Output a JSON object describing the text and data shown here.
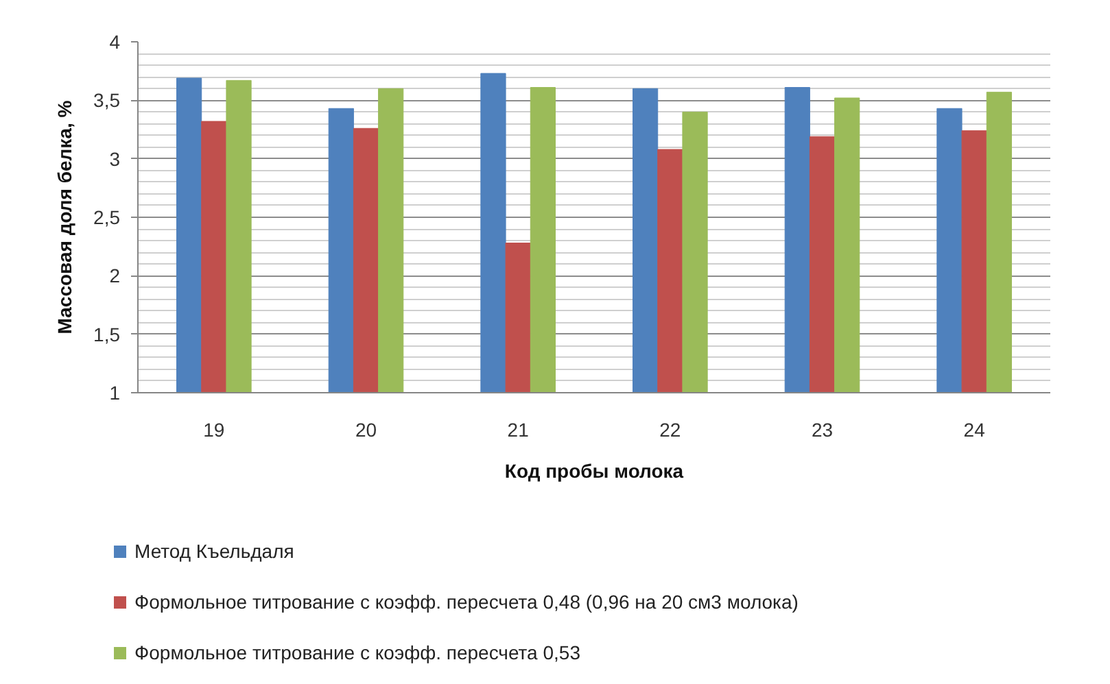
{
  "chart_data": {
    "type": "bar",
    "xlabel": "Код пробы молока",
    "ylabel": "Массовая доля белка, %",
    "categories": [
      "19",
      "20",
      "21",
      "22",
      "23",
      "24"
    ],
    "series": [
      {
        "name": "Метод Къельдаля",
        "color": "#4f81bd",
        "values": [
          3.69,
          3.43,
          3.73,
          3.6,
          3.61,
          3.43
        ]
      },
      {
        "name": "Формольное титрование с коэфф. пересчета 0,48 (0,96 на 20 см3 молока)",
        "color": "#c0504d",
        "values": [
          3.32,
          3.26,
          2.28,
          3.08,
          3.19,
          3.24
        ]
      },
      {
        "name": "Формольное титрование с коэфф. пересчета 0,53",
        "color": "#9bbb59",
        "values": [
          3.67,
          3.6,
          3.61,
          3.4,
          3.52,
          3.57
        ]
      }
    ],
    "ylim": [
      1,
      4
    ],
    "yticks": [
      1,
      {
        "value": 1.5,
        "label": "1,5"
      },
      2,
      {
        "value": 2.5,
        "label": "2,5"
      },
      3,
      {
        "value": 3.5,
        "label": "3,5"
      },
      4
    ],
    "grid": "y",
    "legend": "bottom"
  }
}
